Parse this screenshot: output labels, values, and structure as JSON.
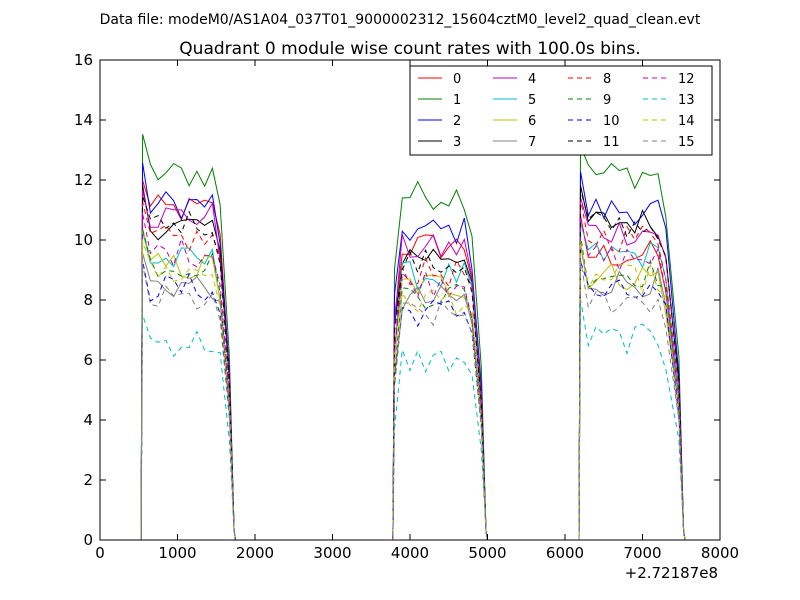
{
  "figure": {
    "suptitle": "Data file: modeM0/AS1A04_037T01_9000002312_15604cztM0_level2_quad_clean.evt"
  },
  "colors": {
    "module_colors": [
      "#ff0000",
      "#008000",
      "#0000ff",
      "#000000",
      "#bf00bf",
      "#00bfbf",
      "#bfbf00",
      "#808080",
      "#ff0000",
      "#008000",
      "#0000ff",
      "#000000",
      "#bf00bf",
      "#00bfbf",
      "#bfbf00",
      "#808080"
    ]
  },
  "chart_data": {
    "type": "line",
    "title": "Quadrant 0 module wise count rates with 100.0s bins.",
    "xlabel": "",
    "ylabel": "",
    "x_offset_label": "+2.72187e8",
    "xlim": [
      0,
      8000
    ],
    "ylim": [
      0,
      16
    ],
    "xticks": [
      0,
      1000,
      2000,
      3000,
      4000,
      5000,
      6000,
      7000,
      8000
    ],
    "yticks": [
      0,
      2,
      4,
      6,
      8,
      10,
      12,
      14,
      16
    ],
    "legend": {
      "position": "top-right",
      "columns": 4
    },
    "gti": [
      [
        550,
        1750
      ],
      [
        3800,
        5000
      ],
      [
        6200,
        7550
      ]
    ],
    "bin_width": 100,
    "series": [
      {
        "name": "0",
        "style": "solid",
        "levels": [
          11.0,
          9.8,
          9.5
        ]
      },
      {
        "name": "1",
        "style": "solid",
        "levels": [
          12.2,
          11.5,
          12.2
        ]
      },
      {
        "name": "2",
        "style": "solid",
        "levels": [
          11.2,
          10.3,
          11.0
        ]
      },
      {
        "name": "3",
        "style": "solid",
        "levels": [
          10.5,
          9.5,
          10.6
        ]
      },
      {
        "name": "4",
        "style": "solid",
        "levels": [
          10.8,
          9.7,
          10.3
        ]
      },
      {
        "name": "5",
        "style": "solid",
        "levels": [
          9.3,
          8.8,
          9.5
        ]
      },
      {
        "name": "6",
        "style": "solid",
        "levels": [
          9.1,
          8.5,
          8.8
        ]
      },
      {
        "name": "7",
        "style": "solid",
        "levels": [
          8.5,
          8.0,
          8.6
        ]
      },
      {
        "name": "8",
        "style": "dashed",
        "levels": [
          10.0,
          8.9,
          10.1
        ]
      },
      {
        "name": "9",
        "style": "dashed",
        "levels": [
          9.2,
          8.2,
          8.9
        ]
      },
      {
        "name": "10",
        "style": "dashed",
        "levels": [
          8.4,
          7.6,
          8.2
        ]
      },
      {
        "name": "11",
        "style": "dashed",
        "levels": [
          10.6,
          9.2,
          10.5
        ]
      },
      {
        "name": "12",
        "style": "dashed",
        "levels": [
          9.6,
          8.6,
          9.4
        ]
      },
      {
        "name": "13",
        "style": "dashed",
        "levels": [
          6.6,
          6.0,
          6.7
        ]
      },
      {
        "name": "14",
        "style": "dashed",
        "levels": [
          8.9,
          8.0,
          8.7
        ]
      },
      {
        "name": "15",
        "style": "dashed",
        "levels": [
          8.0,
          7.5,
          8.0
        ]
      }
    ]
  }
}
